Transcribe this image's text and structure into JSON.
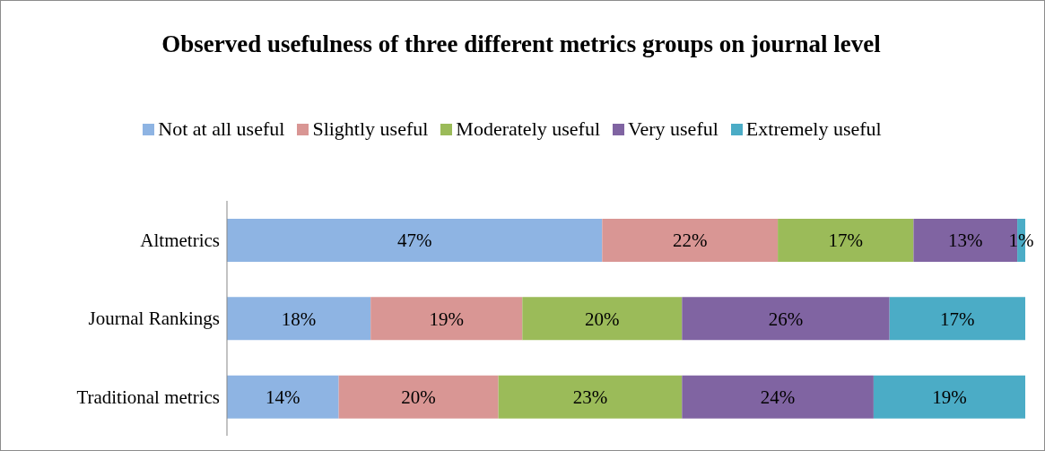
{
  "chart_data": {
    "type": "bar",
    "orientation": "horizontal",
    "stacked": true,
    "title": "Observed usefulness of three different metrics groups on journal level",
    "categories": [
      "Altmetrics",
      "Journal Rankings",
      "Traditional metrics"
    ],
    "series": [
      {
        "name": "Not at all useful",
        "color": "#8eb4e3",
        "values": [
          47,
          18,
          14
        ],
        "value_labels": [
          "47%",
          "18%",
          "14%"
        ]
      },
      {
        "name": "Slightly useful",
        "color": "#d99694",
        "values": [
          22,
          19,
          20
        ],
        "value_labels": [
          "22%",
          "19%",
          "20%"
        ]
      },
      {
        "name": "Moderately useful",
        "color": "#9bbb59",
        "values": [
          17,
          20,
          23
        ],
        "value_labels": [
          "17%",
          "20%",
          "23%"
        ]
      },
      {
        "name": "Very useful",
        "color": "#8064a2",
        "values": [
          13,
          26,
          24
        ],
        "value_labels": [
          "13%",
          "26%",
          "24%"
        ]
      },
      {
        "name": "Extremely useful",
        "color": "#4bacc6",
        "values": [
          1,
          17,
          19
        ],
        "value_labels": [
          "1%",
          "17%",
          "19%"
        ]
      }
    ],
    "xlim": [
      0,
      100
    ],
    "tick_labels": "y",
    "grid": false,
    "legend": "top"
  }
}
